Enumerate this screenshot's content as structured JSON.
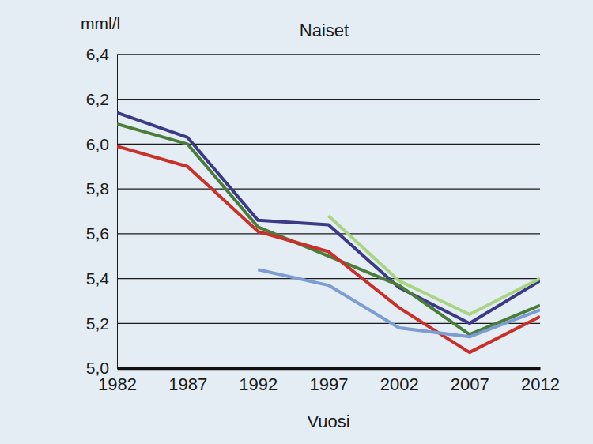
{
  "chart_data": {
    "type": "line",
    "title": "Naiset",
    "y_label": "mml/l",
    "x_label": "Vuosi",
    "x": [
      1982,
      1987,
      1992,
      1997,
      2002,
      2007,
      2012
    ],
    "xlim": [
      1982,
      2012
    ],
    "xticks": [
      1982,
      1987,
      1992,
      1997,
      2002,
      2007,
      2012
    ],
    "ylim": [
      5.0,
      6.4
    ],
    "yticks": [
      {
        "value": 5.0,
        "label": "5,0"
      },
      {
        "value": 5.2,
        "label": "5,2"
      },
      {
        "value": 5.4,
        "label": "5,4"
      },
      {
        "value": 5.6,
        "label": "5,6"
      },
      {
        "value": 5.8,
        "label": "5,8"
      },
      {
        "value": 6.0,
        "label": "6,0"
      },
      {
        "value": 6.2,
        "label": "6,2"
      },
      {
        "value": 6.4,
        "label": "6,4"
      }
    ],
    "grid": true,
    "series": [
      {
        "color": "#3b3a86",
        "values": [
          6.14,
          6.03,
          5.66,
          5.64,
          5.36,
          5.2,
          5.39
        ]
      },
      {
        "color": "#4b7d3a",
        "values": [
          6.09,
          6.0,
          5.63,
          5.5,
          5.37,
          5.15,
          5.28
        ]
      },
      {
        "color": "#c9302a",
        "values": [
          5.99,
          5.9,
          5.61,
          5.52,
          5.27,
          5.07,
          5.23
        ]
      },
      {
        "color": "#7d9cd2",
        "values": [
          null,
          null,
          5.44,
          5.37,
          5.18,
          5.14,
          5.26
        ]
      },
      {
        "color": "#a9d481",
        "values": [
          null,
          null,
          null,
          5.68,
          5.39,
          5.24,
          5.4
        ]
      }
    ]
  }
}
